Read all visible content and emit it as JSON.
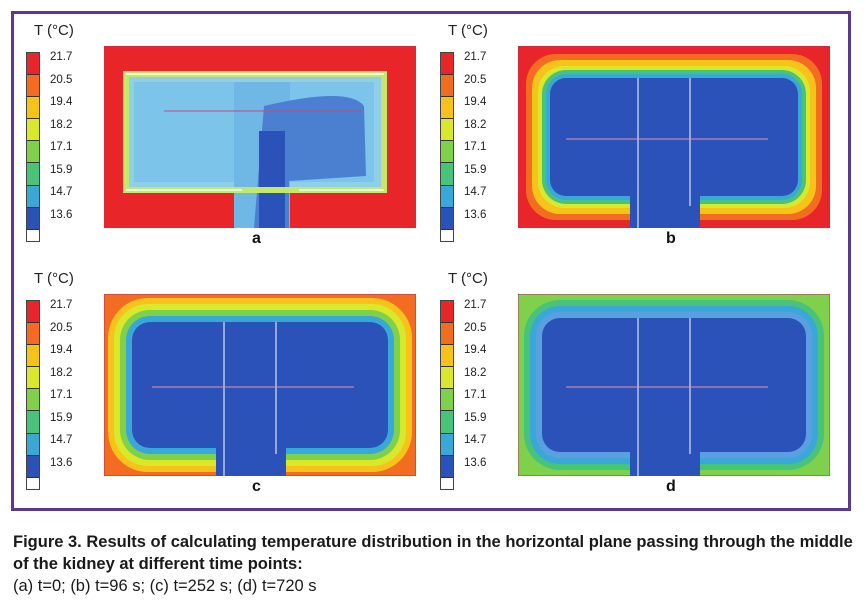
{
  "figure": {
    "panels": [
      {
        "id": "a",
        "unit_label": "T (°C)",
        "label": "a"
      },
      {
        "id": "b",
        "unit_label": "T (°C)",
        "label": "b"
      },
      {
        "id": "c",
        "unit_label": "T (°C)",
        "label": "c"
      },
      {
        "id": "d",
        "unit_label": "T (°C)",
        "label": "d"
      }
    ],
    "scale_ticks": [
      "21.7",
      "20.5",
      "19.4",
      "18.2",
      "17.1",
      "15.9",
      "14.7",
      "13.6"
    ],
    "scale_colors": [
      "#e8262a",
      "#f26d22",
      "#f7c21a",
      "#d9e82a",
      "#7fd04a",
      "#49c27a",
      "#39a8d8",
      "#2b52b8"
    ]
  },
  "caption": {
    "title": "Figure 3. Results of calculating temperature distribution in the horizontal plane passing through the middle of the kidney at different time points:",
    "details": "(a) t=0; (b) t=96 s; (c) t=252 s; (d) t=720 s"
  },
  "colors": {
    "frame": "#5b3a8c",
    "hot": "#e8262a",
    "cold": "#2b52b8"
  }
}
